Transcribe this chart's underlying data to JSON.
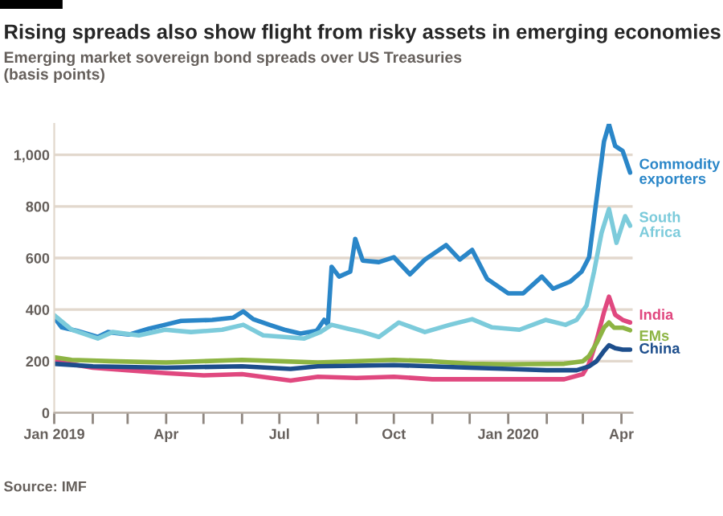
{
  "chart_data": {
    "type": "line",
    "title": "Rising spreads also show flight from risky assets in emerging economies",
    "subtitle": "Emerging market sovereign bond spreads over US Treasuries\n(basis points)",
    "annotations": [
      "Source: IMF"
    ],
    "ylim": [
      0,
      1120
    ],
    "yticks": [
      0,
      200,
      400,
      600,
      800,
      {
        "value": 1000,
        "label": "1,000"
      }
    ],
    "xlim": [
      "2019-01-01",
      "2020-04-10"
    ],
    "xticks": [
      {
        "value": "2019-01-01",
        "label": "Jan 2019"
      },
      {
        "value": "2019-02-01",
        "label": null
      },
      {
        "value": "2019-03-01",
        "label": null
      },
      {
        "value": "2019-04-01",
        "label": "Apr"
      },
      {
        "value": "2019-05-01",
        "label": null
      },
      {
        "value": "2019-06-01",
        "label": null
      },
      {
        "value": "2019-07-01",
        "label": "Jul"
      },
      {
        "value": "2019-08-01",
        "label": null
      },
      {
        "value": "2019-09-01",
        "label": null
      },
      {
        "value": "2019-10-01",
        "label": "Oct"
      },
      {
        "value": "2019-11-01",
        "label": null
      },
      {
        "value": "2019-12-01",
        "label": null
      },
      {
        "value": "2020-01-01",
        "label": "Jan 2020"
      },
      {
        "value": "2020-02-01",
        "label": null
      },
      {
        "value": "2020-03-01",
        "label": null
      },
      {
        "value": "2020-04-01",
        "label": "Apr"
      }
    ],
    "grid": "y",
    "legend": false,
    "series": [
      {
        "name": "Commodity\nexporters",
        "color": "#2a86c8",
        "x": [
          "2019-01-01",
          "2019-01-07",
          "2019-01-19",
          "2019-02-05",
          "2019-02-13",
          "2019-03-02",
          "2019-03-18",
          "2019-03-31",
          "2019-04-13",
          "2019-05-08",
          "2019-05-25",
          "2019-06-02",
          "2019-06-10",
          "2019-06-23",
          "2019-07-05",
          "2019-07-18",
          "2019-07-31",
          "2019-08-06",
          "2019-08-09",
          "2019-08-12",
          "2019-08-18",
          "2019-08-27",
          "2019-08-31",
          "2019-09-06",
          "2019-09-19",
          "2019-10-01",
          "2019-10-14",
          "2019-10-26",
          "2019-11-12",
          "2019-11-23",
          "2019-12-03",
          "2019-12-15",
          "2020-01-01",
          "2020-01-13",
          "2020-01-28",
          "2020-02-06",
          "2020-02-20",
          "2020-02-29",
          "2020-03-06",
          "2020-03-12",
          "2020-03-18",
          "2020-03-22",
          "2020-03-27",
          "2020-04-02",
          "2020-04-08"
        ],
        "values": [
          369,
          331,
          318,
          294,
          313,
          303,
          326,
          341,
          356,
          360,
          369,
          393,
          363,
          341,
          322,
          307,
          318,
          360,
          341,
          566,
          528,
          547,
          674,
          590,
          584,
          603,
          537,
          594,
          650,
          594,
          631,
          519,
          463,
          463,
          528,
          481,
          509,
          547,
          603,
          828,
          1052,
          1118,
          1034,
          1015,
          931
        ]
      },
      {
        "name": "South\nAfrica",
        "color": "#7ccbdb",
        "x": [
          "2019-01-01",
          "2019-01-15",
          "2019-02-05",
          "2019-02-17",
          "2019-03-10",
          "2019-03-31",
          "2019-04-21",
          "2019-05-16",
          "2019-06-02",
          "2019-06-18",
          "2019-07-05",
          "2019-07-21",
          "2019-08-03",
          "2019-08-12",
          "2019-08-25",
          "2019-09-06",
          "2019-09-19",
          "2019-10-05",
          "2019-10-26",
          "2019-11-15",
          "2019-12-03",
          "2019-12-19",
          "2020-01-10",
          "2020-01-31",
          "2020-02-16",
          "2020-02-25",
          "2020-03-04",
          "2020-03-10",
          "2020-03-16",
          "2020-03-22",
          "2020-03-28",
          "2020-04-04",
          "2020-04-08"
        ],
        "values": [
          378,
          322,
          288,
          313,
          300,
          322,
          313,
          322,
          341,
          300,
          294,
          288,
          313,
          341,
          326,
          313,
          294,
          350,
          313,
          341,
          363,
          331,
          322,
          360,
          341,
          360,
          416,
          547,
          697,
          790,
          659,
          762,
          725
        ]
      },
      {
        "name": "India",
        "color": "#e0487f",
        "x": [
          "2019-01-01",
          "2019-02-01",
          "2019-03-01",
          "2019-04-01",
          "2019-05-01",
          "2019-06-01",
          "2019-07-10",
          "2019-08-01",
          "2019-09-01",
          "2019-10-01",
          "2019-11-01",
          "2019-12-01",
          "2020-01-01",
          "2020-02-15",
          "2020-03-01",
          "2020-03-06",
          "2020-03-12",
          "2020-03-18",
          "2020-03-22",
          "2020-03-27",
          "2020-04-02",
          "2020-04-08"
        ],
        "values": [
          200,
          175,
          165,
          154,
          145,
          150,
          125,
          140,
          135,
          140,
          130,
          130,
          130,
          130,
          150,
          190,
          280,
          390,
          450,
          380,
          360,
          350
        ]
      },
      {
        "name": "EMs",
        "color": "#8db443",
        "x": [
          "2019-01-01",
          "2019-01-15",
          "2019-02-15",
          "2019-04-01",
          "2019-06-01",
          "2019-07-01",
          "2019-08-01",
          "2019-10-01",
          "2019-11-01",
          "2019-12-01",
          "2020-01-01",
          "2020-02-15",
          "2020-03-01",
          "2020-03-06",
          "2020-03-12",
          "2020-03-18",
          "2020-03-22",
          "2020-03-26",
          "2020-04-02",
          "2020-04-08"
        ],
        "values": [
          215,
          205,
          200,
          195,
          205,
          200,
          195,
          205,
          200,
          190,
          188,
          190,
          200,
          220,
          270,
          330,
          350,
          330,
          330,
          320
        ]
      },
      {
        "name": "China",
        "color": "#1d4e8c",
        "x": [
          "2019-01-01",
          "2019-02-01",
          "2019-04-01",
          "2019-06-01",
          "2019-07-10",
          "2019-08-01",
          "2019-10-01",
          "2019-12-01",
          "2020-01-01",
          "2020-02-01",
          "2020-02-25",
          "2020-03-06",
          "2020-03-12",
          "2020-03-18",
          "2020-03-22",
          "2020-03-27",
          "2020-04-02",
          "2020-04-08"
        ],
        "values": [
          190,
          180,
          175,
          180,
          170,
          180,
          185,
          175,
          170,
          165,
          165,
          180,
          200,
          240,
          262,
          250,
          245,
          245
        ]
      }
    ]
  }
}
